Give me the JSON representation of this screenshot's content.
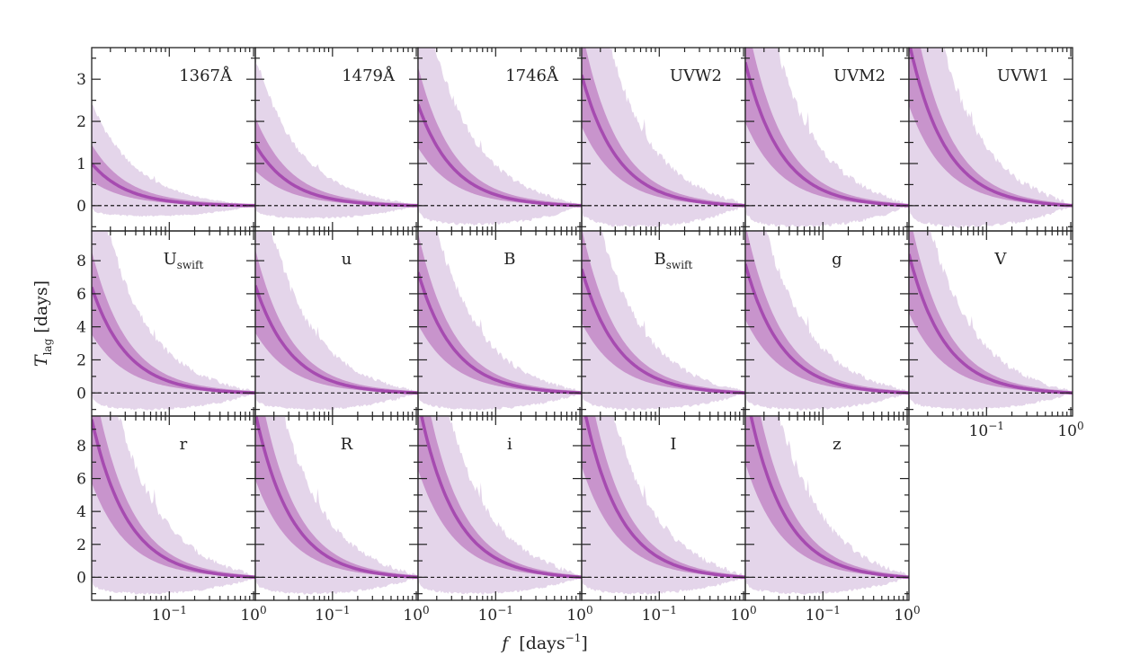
{
  "chart_data": {
    "type": "area",
    "title": "",
    "xlabel": "f [days^-1]",
    "xlabel_main": "f",
    "xlabel_unit_prefix": "[days",
    "xlabel_unit_exp": "−1",
    "xlabel_unit_suffix": "]",
    "ylabel_main": "T",
    "ylabel_sub": "lag",
    "ylabel_unit": "[days]",
    "xscale": "log",
    "xlim": [
      0.012,
      1.05
    ],
    "x_tick_labels": [
      {
        "value": 0.1,
        "base": "10",
        "exp": "−1"
      },
      {
        "value": 1.0,
        "base": "10",
        "exp": "0"
      }
    ],
    "row_ylims": [
      [
        -0.6,
        3.75
      ],
      [
        -1.4,
        9.8
      ],
      [
        -1.4,
        9.8
      ]
    ],
    "row_yticks": [
      [
        0,
        1,
        2,
        3
      ],
      [
        0,
        2,
        4,
        6,
        8
      ],
      [
        0,
        2,
        4,
        6,
        8
      ]
    ],
    "reference_line": {
      "y": 0,
      "style": "dashed",
      "color": "#000000"
    },
    "colors": {
      "median": "#a64bb0",
      "band_1sigma": "#c894cc",
      "band_2sigma": "#e4d5ea"
    },
    "bands_description": "median lag curve with inner (darker) and outer (lighter) credible bands",
    "panels": [
      {
        "label": "1367Å",
        "sub": "",
        "row": 0,
        "col": 0,
        "lag_at_fmin": 1.0,
        "inner_hi": 1.45,
        "inner_lo": 0.6,
        "outer_hi": 2.4,
        "outer_lo": -0.5
      },
      {
        "label": "1479Å",
        "sub": "",
        "row": 0,
        "col": 1,
        "lag_at_fmin": 1.45,
        "inner_hi": 2.1,
        "inner_lo": 0.85,
        "outer_hi": 3.5,
        "outer_lo": -0.6
      },
      {
        "label": "1746Å",
        "sub": "",
        "row": 0,
        "col": 2,
        "lag_at_fmin": 2.4,
        "inner_hi": 3.3,
        "inner_lo": 1.4,
        "outer_hi": 5.5,
        "outer_lo": -0.9
      },
      {
        "label": "UVW2",
        "sub": "",
        "row": 0,
        "col": 3,
        "lag_at_fmin": 3.1,
        "inner_hi": 4.2,
        "inner_lo": 1.9,
        "outer_hi": 7.0,
        "outer_lo": -1.0
      },
      {
        "label": "UVM2",
        "sub": "",
        "row": 0,
        "col": 4,
        "lag_at_fmin": 3.4,
        "inner_hi": 4.6,
        "inner_lo": 2.0,
        "outer_hi": 7.5,
        "outer_lo": -1.0
      },
      {
        "label": "UVW1",
        "sub": "",
        "row": 0,
        "col": 5,
        "lag_at_fmin": 3.9,
        "inner_hi": 5.2,
        "inner_lo": 2.4,
        "outer_hi": 8.0,
        "outer_lo": -1.0
      },
      {
        "label": "U",
        "sub": "swift",
        "row": 1,
        "col": 0,
        "lag_at_fmin": 6.4,
        "inner_hi": 8.6,
        "inner_lo": 3.6,
        "outer_hi": 14.0,
        "outer_lo": -2.0
      },
      {
        "label": "u",
        "sub": "",
        "row": 1,
        "col": 1,
        "lag_at_fmin": 6.5,
        "inner_hi": 8.7,
        "inner_lo": 3.7,
        "outer_hi": 14.0,
        "outer_lo": -2.0
      },
      {
        "label": "B",
        "sub": "",
        "row": 1,
        "col": 2,
        "lag_at_fmin": 7.3,
        "inner_hi": 9.7,
        "inner_lo": 4.2,
        "outer_hi": 15.0,
        "outer_lo": -2.0
      },
      {
        "label": "B",
        "sub": "swift",
        "row": 1,
        "col": 3,
        "lag_at_fmin": 7.5,
        "inner_hi": 10.0,
        "inner_lo": 4.3,
        "outer_hi": 15.0,
        "outer_lo": -2.0
      },
      {
        "label": "g",
        "sub": "",
        "row": 1,
        "col": 4,
        "lag_at_fmin": 7.8,
        "inner_hi": 10.3,
        "inner_lo": 4.5,
        "outer_hi": 15.5,
        "outer_lo": -2.0
      },
      {
        "label": "V",
        "sub": "",
        "row": 1,
        "col": 5,
        "lag_at_fmin": 8.4,
        "inner_hi": 11.0,
        "inner_lo": 4.9,
        "outer_hi": 16.0,
        "outer_lo": -2.0
      },
      {
        "label": "r",
        "sub": "",
        "row": 2,
        "col": 0,
        "lag_at_fmin": 9.6,
        "inner_hi": 12.5,
        "inner_lo": 5.8,
        "outer_hi": 18.0,
        "outer_lo": -2.0
      },
      {
        "label": "R",
        "sub": "",
        "row": 2,
        "col": 1,
        "lag_at_fmin": 10.0,
        "inner_hi": 13.0,
        "inner_lo": 6.0,
        "outer_hi": 18.5,
        "outer_lo": -2.0
      },
      {
        "label": "i",
        "sub": "",
        "row": 2,
        "col": 2,
        "lag_at_fmin": 10.8,
        "inner_hi": 14.0,
        "inner_lo": 6.6,
        "outer_hi": 19.5,
        "outer_lo": -2.0
      },
      {
        "label": "I",
        "sub": "",
        "row": 2,
        "col": 3,
        "lag_at_fmin": 11.0,
        "inner_hi": 14.3,
        "inner_lo": 6.8,
        "outer_hi": 20.0,
        "outer_lo": -2.0
      },
      {
        "label": "z",
        "sub": "",
        "row": 2,
        "col": 4,
        "lag_at_fmin": 11.5,
        "inner_hi": 15.0,
        "inner_lo": 7.0,
        "outer_hi": 21.0,
        "outer_lo": -2.0
      }
    ],
    "bottom_axis_panels": [
      [
        2,
        0
      ],
      [
        2,
        1
      ],
      [
        2,
        2
      ],
      [
        2,
        3
      ],
      [
        2,
        4
      ],
      [
        1,
        5
      ]
    ],
    "legend": "none"
  }
}
